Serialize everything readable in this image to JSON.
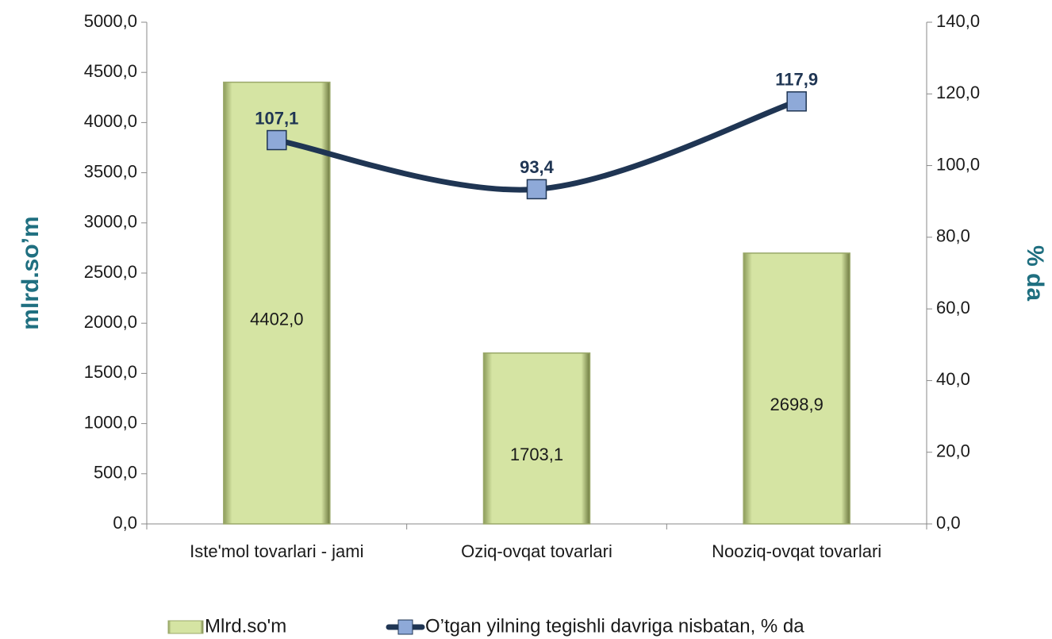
{
  "chart_data": {
    "type": "bar",
    "categories": [
      "Iste'mol tovarlari - jami",
      "Oziq-ovqat tovarlari",
      "Nooziq-ovqat tovarlari"
    ],
    "ylabel": "mlrd.so’m",
    "y2label": "% da",
    "ylim": [
      0,
      5000
    ],
    "yticks": [
      {
        "value": 0,
        "label": "0,0"
      },
      {
        "value": 500,
        "label": "500,0"
      },
      {
        "value": 1000,
        "label": "1000,0"
      },
      {
        "value": 1500,
        "label": "1500,0"
      },
      {
        "value": 2000,
        "label": "2000,0"
      },
      {
        "value": 2500,
        "label": "2500,0"
      },
      {
        "value": 3000,
        "label": "3000,0"
      },
      {
        "value": 3500,
        "label": "3500,0"
      },
      {
        "value": 4000,
        "label": "4000,0"
      },
      {
        "value": 4500,
        "label": "4500,0"
      },
      {
        "value": 5000,
        "label": "5000,0"
      }
    ],
    "y2lim": [
      0,
      140
    ],
    "y2ticks": [
      {
        "value": 0,
        "label": "0,0"
      },
      {
        "value": 20,
        "label": "20,0"
      },
      {
        "value": 40,
        "label": "40,0"
      },
      {
        "value": 60,
        "label": "60,0"
      },
      {
        "value": 80,
        "label": "80,0"
      },
      {
        "value": 100,
        "label": "100,0"
      },
      {
        "value": 120,
        "label": "120,0"
      },
      {
        "value": 140,
        "label": "140,0"
      }
    ],
    "series": [
      {
        "name": "Mlrd.so'm",
        "type": "bar",
        "color": "#d5e4a3",
        "values": [
          4402.0,
          1703.1,
          2698.9
        ],
        "value_labels": [
          "4402,0",
          "1703,1",
          "2698,9"
        ]
      },
      {
        "name": "O’tgan yilning tegishli davriga nisbatan, % da",
        "type": "line",
        "axis": "y2",
        "color": "#1f3553",
        "marker_color": "#8ea9d8",
        "values": [
          107.1,
          93.4,
          117.9
        ],
        "value_labels": [
          "107,1",
          "93,4",
          "117,9"
        ]
      }
    ],
    "legend": "bottom"
  }
}
